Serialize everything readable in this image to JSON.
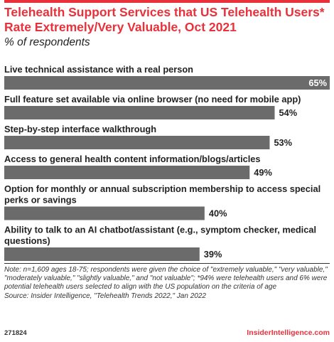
{
  "header": {
    "title": "Telehealth Support Services that US Telehealth Users* Rate Extremely/Very Valuable, Oct 2021",
    "subtitle": "% of respondents"
  },
  "chart_data": {
    "type": "bar",
    "orientation": "horizontal",
    "categories": [
      [
        "Live technical assistance with a real person"
      ],
      [
        "Full feature set available via online browser (no need for mobile app)"
      ],
      [
        "Step-by-step interface walkthrough"
      ],
      [
        "Access to general health content information/blogs/articles"
      ],
      [
        "Option for monthly or annual subscription membership to access special",
        "perks or savings"
      ],
      [
        "Ability to talk to an AI chatbot/assistant (e.g., symptom checker, medical",
        "questions)"
      ]
    ],
    "values": [
      65,
      54,
      53,
      49,
      40,
      39
    ],
    "value_labels": [
      "65%",
      "54%",
      "53%",
      "49%",
      "40%",
      "39%"
    ],
    "unit": "%",
    "xlim": [
      0,
      65
    ],
    "bar_color": "#6b6b6b",
    "grid": false
  },
  "footer": {
    "note": "Note: n=1,609 ages 18-75; respondents were given the choice of \"extremely valuable,\" \"very valuable,\" \"moderately valuable,\" \"slightly valuable,\" and \"not valuable\"; *94% were telehealth users and 6% were potential telehealth users selected to align with the US population on the criteria of age",
    "source": "Source: Insider Intelligence, \"Telehealth Trends 2022,\" Jan 2022",
    "chart_id": "271824",
    "brand": "InsiderIntelligence.com"
  },
  "colors": {
    "accent": "#e8313b",
    "bar": "#6b6b6b",
    "text": "#222222"
  }
}
